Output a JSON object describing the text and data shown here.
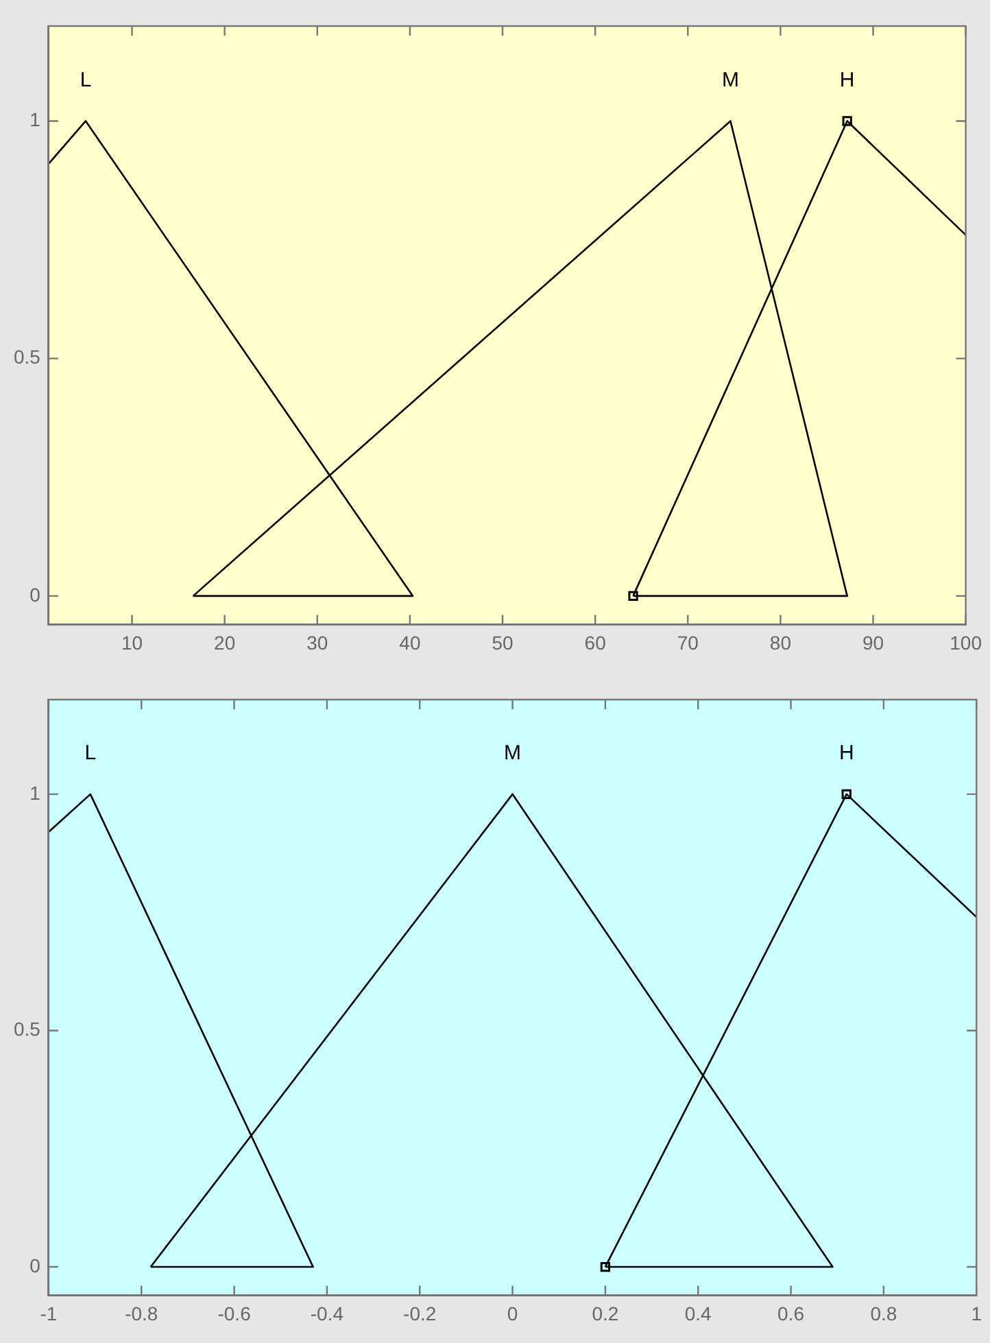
{
  "chart_data": [
    {
      "type": "line",
      "xlim": [
        1,
        100
      ],
      "xticks": [
        10,
        20,
        30,
        40,
        50,
        60,
        70,
        80,
        90,
        100
      ],
      "ylim": [
        -0.06,
        1.2
      ],
      "yticks": [
        0,
        0.5,
        1
      ],
      "grid": false,
      "legend": false,
      "series": [
        {
          "name": "L",
          "color": "#000000",
          "marker": "none",
          "x": [
            1,
            5,
            40.3,
            16.6
          ],
          "values": [
            0.91,
            1,
            0,
            0
          ]
        },
        {
          "name": "M",
          "color": "#000000",
          "marker": "none",
          "x": [
            16.6,
            74.6,
            87.2,
            64.1
          ],
          "values": [
            0,
            1,
            0,
            0
          ]
        },
        {
          "name": "H",
          "color": "#000000",
          "marker": "none",
          "x": [
            64.1,
            87.2,
            100
          ],
          "values": [
            0,
            1,
            0.76
          ]
        },
        {
          "type": "scatter",
          "color": "#000000",
          "marker": "square",
          "x": [
            64.1,
            87.2
          ],
          "values": [
            0,
            1
          ]
        }
      ]
    },
    {
      "type": "line",
      "xlim": [
        -1,
        1
      ],
      "xticks": [
        -1,
        -0.8,
        -0.6,
        -0.4,
        -0.2,
        0,
        0.2,
        0.4,
        0.6,
        0.8,
        1
      ],
      "ylim": [
        -0.06,
        1.2
      ],
      "yticks": [
        0,
        0.5,
        1
      ],
      "grid": false,
      "legend": false,
      "series": [
        {
          "name": "L",
          "color": "#000000",
          "marker": "none",
          "x": [
            -1,
            -0.91,
            -0.43,
            -0.78
          ],
          "values": [
            0.92,
            1,
            0,
            0
          ]
        },
        {
          "name": "M",
          "color": "#000000",
          "marker": "none",
          "x": [
            -0.78,
            0,
            0.69,
            0.2
          ],
          "values": [
            0,
            1,
            0,
            0
          ]
        },
        {
          "name": "H",
          "color": "#000000",
          "marker": "none",
          "x": [
            0.2,
            0.72,
            1
          ],
          "values": [
            0,
            1,
            0.74
          ]
        },
        {
          "type": "scatter",
          "color": "#000000",
          "marker": "square",
          "x": [
            0.2,
            0.72
          ],
          "values": [
            0,
            1
          ]
        }
      ]
    }
  ]
}
